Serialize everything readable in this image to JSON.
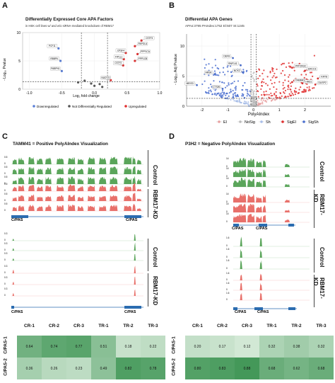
{
  "panels": {
    "A": {
      "letter": "A",
      "title": "Differentially Expressed Core APA Factors",
      "subtitle": "in HEK cell lines w/ and w/o siRNA-mediated knockdown of RBM17",
      "ylabel": "- Log₁₀ Pvalue",
      "xlabel": "Log₂ fold change",
      "legend": [
        "Downregulated",
        "Not Differentially Regulated",
        "Upregulated"
      ],
      "colors": {
        "down": "#5b7fd6",
        "ns": "#555555",
        "up": "#e03030"
      }
    },
    "B": {
      "letter": "B",
      "title": "Differential APA Genes",
      "subtitle": "APAs:3795 PAIndex:1752 El:507 St:1245",
      "ylabel": "- Log₁₀ Adj Pvalue",
      "xlabel": "PolyAIndex",
      "legend": [
        "El",
        "NoSig",
        "Sh",
        "SigEl",
        "SigSh"
      ],
      "colors": {
        "El": "#e8a0a0",
        "NoSig": "#bbbbbb",
        "Sh": "#a8bde8",
        "SigEl": "#e03030",
        "SigSh": "#4a6fd0"
      }
    },
    "C": {
      "letter": "C",
      "title": "TAMM41 = Positive PolyAIndex Visualization",
      "conditions": [
        "Control",
        "RBM17-KD"
      ],
      "pas_labels": [
        "C/PAS",
        "C/PAS"
      ],
      "pas_labels_lower": [
        "C/PAS",
        "C/PAS"
      ]
    },
    "D": {
      "letter": "D",
      "title": "P3H2 = Negative PolyAIndex Visualization",
      "conditions": [
        "Control",
        "RBM17-KD"
      ],
      "pas_labels": [
        "C/PAS",
        "C/PAS"
      ],
      "pas_labels_lower": [
        "C/PAS",
        "C/PAS"
      ]
    }
  },
  "chart_data": [
    {
      "type": "scatter",
      "panel": "A",
      "title": "Differentially Expressed Core APA Factors",
      "xlabel": "Log₂ fold change",
      "ylabel": "- Log₁₀ Pvalue",
      "xlim": [
        -1.1,
        1.0
      ],
      "ylim": [
        0,
        10
      ],
      "xticks": [
        "-1.0",
        "-0.5",
        "0.0",
        "0.5",
        "1.0"
      ],
      "yticks": [
        "0",
        "5",
        "10"
      ],
      "points": [
        {
          "gene": "PCF11",
          "x": -0.55,
          "y": 7.2,
          "class": "down"
        },
        {
          "gene": "RBBP6",
          "x": -0.52,
          "y": 5.0,
          "class": "down"
        },
        {
          "gene": "PABPN1",
          "x": -0.5,
          "y": 3.2,
          "class": "down"
        },
        {
          "gene": "CSTF3",
          "x": 0.72,
          "y": 8.6,
          "class": "up"
        },
        {
          "gene": "PAPOLA",
          "x": 0.62,
          "y": 7.6,
          "class": "up"
        },
        {
          "gene": "CPSF4",
          "x": 0.48,
          "y": 6.4,
          "class": "up"
        },
        {
          "gene": "PPP1CA",
          "x": 0.66,
          "y": 6.2,
          "class": "up"
        },
        {
          "gene": "FIP1L1",
          "x": 0.45,
          "y": 5.3,
          "class": "up"
        },
        {
          "gene": "PPP1CB",
          "x": 0.62,
          "y": 5.0,
          "class": "up"
        },
        {
          "gene": "CSTF2",
          "x": 0.44,
          "y": 4.2,
          "class": "up"
        },
        {
          "gene": "NUDT21",
          "x": 0.25,
          "y": 1.6,
          "class": "up"
        },
        {
          "gene": "",
          "x": -0.15,
          "y": 1.5,
          "class": "ns"
        },
        {
          "gene": "",
          "x": -0.05,
          "y": 1.0,
          "class": "ns"
        },
        {
          "gene": "",
          "x": 0.0,
          "y": 0.6,
          "class": "ns"
        },
        {
          "gene": "",
          "x": 0.08,
          "y": 0.9,
          "class": "ns"
        },
        {
          "gene": "",
          "x": -0.25,
          "y": 1.2,
          "class": "ns"
        },
        {
          "gene": "",
          "x": 0.12,
          "y": 0.4,
          "class": "ns"
        }
      ],
      "thresholds": {
        "x": [
          -0.2,
          0.2
        ],
        "y": 1.3
      },
      "legend_placement": "bottom",
      "grid": true
    },
    {
      "type": "scatter",
      "panel": "B",
      "title": "Differential APA Genes",
      "xlabel": "PolyAIndex",
      "ylabel": "- Log₁₀ Adj Pvalue",
      "xlim": [
        -2.6,
        3.0
      ],
      "ylim": [
        0,
        12
      ],
      "xticks": [
        "-2",
        "-1",
        "0",
        "1",
        "2"
      ],
      "yticks": [
        "0",
        "5",
        "10"
      ],
      "labeled_points": [
        {
          "gene": "DEF8",
          "x": -0.8,
          "y": 8.0,
          "class": "SigSh"
        },
        {
          "gene": "RNF141",
          "x": -0.5,
          "y": 6.8,
          "class": "SigSh"
        },
        {
          "gene": "NCK2",
          "x": -0.4,
          "y": 5.6,
          "class": "SigSh"
        },
        {
          "gene": "ARSK",
          "x": -1.5,
          "y": 5.3,
          "class": "SigSh"
        },
        {
          "gene": "MEIS3",
          "x": -2.2,
          "y": 3.5,
          "class": "SigSh"
        },
        {
          "gene": "CTSW",
          "x": -1.2,
          "y": 2.9,
          "class": "SigSh"
        },
        {
          "gene": "PPP2R3C",
          "x": 1.5,
          "y": 6.4,
          "class": "SigEl"
        },
        {
          "gene": "ERCC3",
          "x": 2.0,
          "y": 5.9,
          "class": "SigEl"
        },
        {
          "gene": "TAMM41",
          "x": 1.5,
          "y": 4.0,
          "class": "SigEl"
        },
        {
          "gene": "HAS1",
          "x": 1.9,
          "y": 3.8,
          "class": "SigEl"
        },
        {
          "gene": "KRT8",
          "x": 2.5,
          "y": 4.6,
          "class": "SigEl"
        },
        {
          "gene": "DUSP2",
          "x": 2.4,
          "y": 3.6,
          "class": "SigEl"
        }
      ],
      "thresholds": {
        "x": [
          -0.1,
          0.1
        ],
        "y": 1.3
      },
      "legend_placement": "bottom",
      "grid": true
    },
    {
      "type": "heatmap",
      "panel": "C",
      "columns": [
        "CR-1",
        "CR-2",
        "CR-3",
        "TR-1",
        "TR-2",
        "TR-3"
      ],
      "rows": [
        "C/PAS-1",
        "C/PAS-2"
      ],
      "values": [
        [
          0.64,
          0.74,
          0.77,
          0.51,
          0.18,
          0.22
        ],
        [
          0.36,
          0.26,
          0.23,
          0.49,
          0.82,
          0.78
        ]
      ],
      "value_labels": [
        [
          "0.64",
          "0.74",
          "0.77",
          "0.51",
          "0.18",
          "0.22"
        ],
        [
          "0.36",
          "0.26",
          "0.23",
          "0.49",
          "0.82",
          "0.78"
        ]
      ]
    },
    {
      "type": "heatmap",
      "panel": "D",
      "columns": [
        "CR-1",
        "CR-2",
        "CR-3",
        "TR-1",
        "TR-2",
        "TR-3"
      ],
      "rows": [
        "C/PAS-1",
        "C/PAS-2"
      ],
      "values": [
        [
          0.2,
          0.17,
          0.12,
          0.32,
          0.38,
          0.32
        ],
        [
          0.8,
          0.83,
          0.88,
          0.68,
          0.62,
          0.68
        ]
      ],
      "value_labels": [
        [
          "0.20",
          "0.17",
          "0.12",
          "0.32",
          "0.38",
          "0.32"
        ],
        [
          "0.80",
          "0.83",
          "0.88",
          "0.68",
          "0.62",
          "0.68"
        ]
      ]
    }
  ]
}
